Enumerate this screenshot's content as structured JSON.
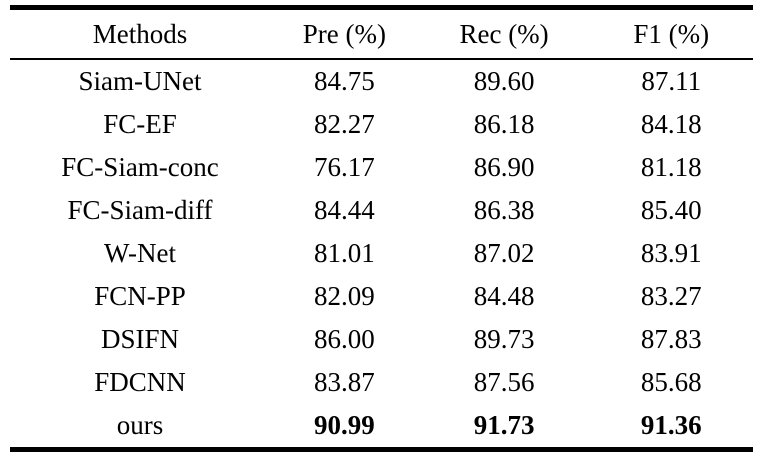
{
  "chart_data": {
    "type": "table",
    "columns": [
      "Methods",
      "Pre (%)",
      "Rec (%)",
      "F1 (%)"
    ],
    "rows": [
      {
        "method": "Siam-UNet",
        "pre": "84.75",
        "rec": "89.60",
        "f1": "87.11"
      },
      {
        "method": "FC-EF",
        "pre": "82.27",
        "rec": "86.18",
        "f1": "84.18"
      },
      {
        "method": "FC-Siam-conc",
        "pre": "76.17",
        "rec": "86.90",
        "f1": "81.18"
      },
      {
        "method": "FC-Siam-diff",
        "pre": "84.44",
        "rec": "86.38",
        "f1": "85.40"
      },
      {
        "method": "W-Net",
        "pre": "81.01",
        "rec": "87.02",
        "f1": "83.91"
      },
      {
        "method": "FCN-PP",
        "pre": "82.09",
        "rec": "84.48",
        "f1": "83.27"
      },
      {
        "method": "DSIFN",
        "pre": "86.00",
        "rec": "89.73",
        "f1": "87.83"
      },
      {
        "method": "FDCNN",
        "pre": "83.87",
        "rec": "87.56",
        "f1": "85.68"
      },
      {
        "method": "ours",
        "pre": "90.99",
        "rec": "91.73",
        "f1": "91.36"
      }
    ],
    "bold_row": "ours",
    "text_color": "#000000",
    "background_color": "#ffffff",
    "layout": "booktabs: thick top rule, thin rule under header, thick bottom rule; all cells centered"
  }
}
